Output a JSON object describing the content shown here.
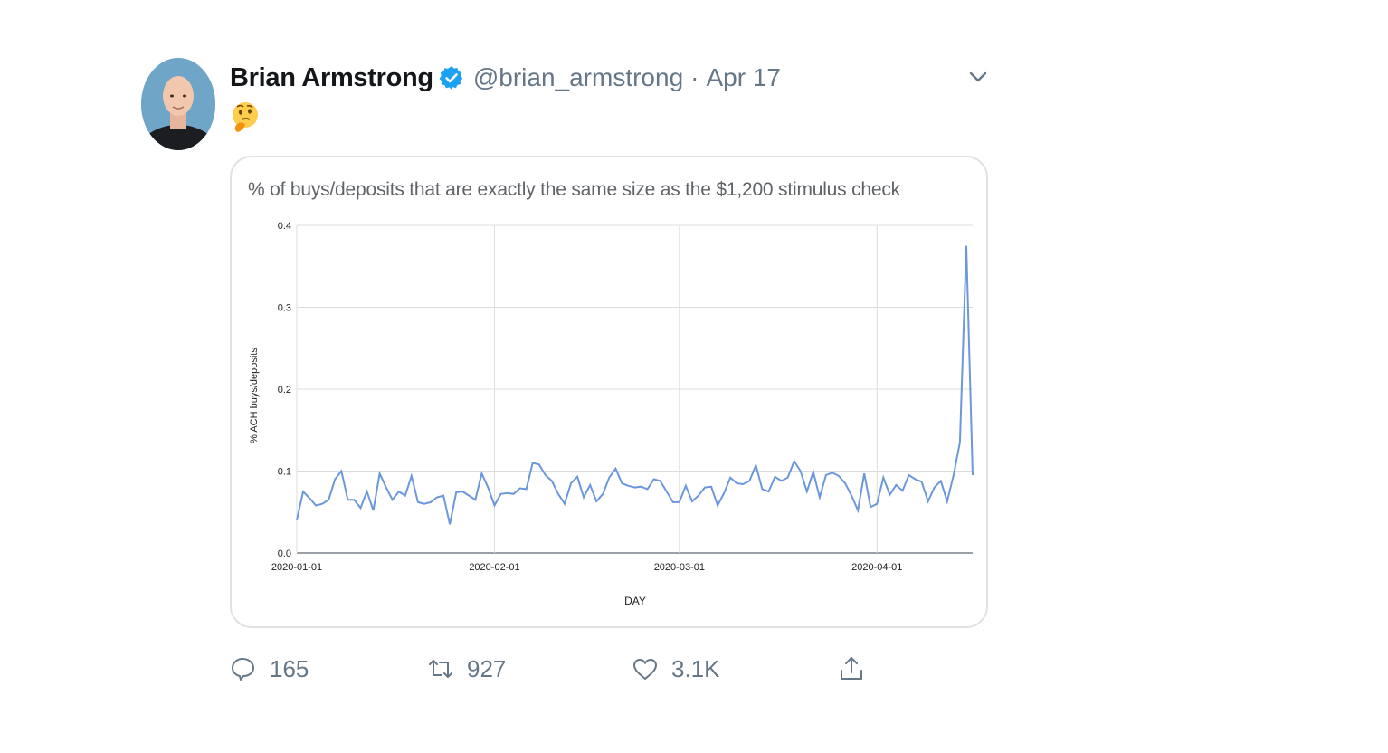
{
  "tweet": {
    "author_name": "Brian Armstrong",
    "handle": "@brian_armstrong",
    "separator": "·",
    "date": "Apr 17",
    "emoji_icon": "thinking-face-icon"
  },
  "actions": {
    "reply_count": "165",
    "retweet_count": "927",
    "like_count": "3.1K"
  },
  "colors": {
    "line": "#6c97dc",
    "grid": "#dadce0",
    "verified": "#1da1f2",
    "muted": "#657786"
  },
  "chart_data": {
    "type": "line",
    "title": "% of buys/deposits that are exactly the same size as the $1,200 stimulus check",
    "xlabel": "DAY",
    "ylabel": "% ACH buys/deposits",
    "ylim": [
      0,
      0.4
    ],
    "yticks": [
      "0.0",
      "0.1",
      "0.2",
      "0.3",
      "0.4"
    ],
    "xticks": [
      "2020-01-01",
      "2020-02-01",
      "2020-03-01",
      "2020-04-01"
    ],
    "x_start": "2020-01-01",
    "x_end": "2020-04-16",
    "grid": true,
    "values": [
      0.04,
      0.075,
      0.067,
      0.058,
      0.06,
      0.065,
      0.09,
      0.1,
      0.065,
      0.065,
      0.055,
      0.075,
      0.052,
      0.097,
      0.08,
      0.065,
      0.075,
      0.07,
      0.094,
      0.062,
      0.06,
      0.062,
      0.068,
      0.07,
      0.035,
      0.074,
      0.075,
      0.07,
      0.065,
      0.097,
      0.08,
      0.058,
      0.072,
      0.073,
      0.072,
      0.079,
      0.078,
      0.11,
      0.108,
      0.095,
      0.088,
      0.072,
      0.06,
      0.085,
      0.093,
      0.068,
      0.083,
      0.063,
      0.072,
      0.092,
      0.103,
      0.085,
      0.082,
      0.08,
      0.081,
      0.078,
      0.09,
      0.088,
      0.075,
      0.062,
      0.062,
      0.082,
      0.063,
      0.07,
      0.08,
      0.081,
      0.058,
      0.073,
      0.092,
      0.085,
      0.084,
      0.088,
      0.107,
      0.078,
      0.075,
      0.093,
      0.088,
      0.092,
      0.112,
      0.1,
      0.075,
      0.099,
      0.068,
      0.095,
      0.098,
      0.094,
      0.085,
      0.07,
      0.052,
      0.097,
      0.056,
      0.06,
      0.092,
      0.071,
      0.083,
      0.076,
      0.095,
      0.09,
      0.087,
      0.063,
      0.08,
      0.088,
      0.063,
      0.095,
      0.135,
      0.375,
      0.095
    ]
  }
}
